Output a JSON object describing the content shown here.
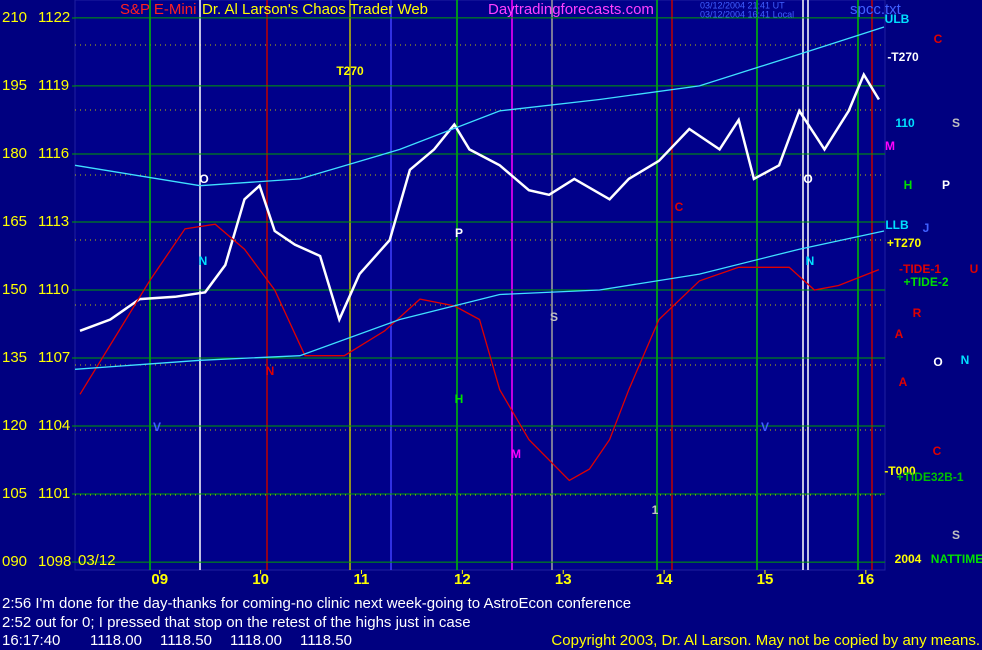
{
  "chart_data": {
    "type": "line",
    "header": {
      "symbol": "S&P E-Mini",
      "title": "Dr. Al Larson's Chaos Trader Web",
      "site": "Daytradingforecasts.com",
      "time_ut": "03/12/2004 21:41 UT",
      "time_local": "03/12/2004 16:41 Local",
      "file": "spcc.txt"
    },
    "date": "03/12",
    "xlim": [
      8.16,
      16.19
    ],
    "xticks": [
      {
        "value": 9,
        "label": "09"
      },
      10,
      11,
      12,
      13,
      14,
      15,
      16
    ],
    "ylim": [
      1097.65,
      1122.79
    ],
    "yticks": [
      1098,
      1101,
      1104,
      1107,
      1110,
      1113,
      1116,
      1119,
      1122
    ],
    "y2lim": [
      88.24,
      213.97
    ],
    "y2ticks": [
      {
        "value": 90,
        "label": "090"
      },
      105,
      120,
      135,
      150,
      165,
      180,
      195,
      210
    ],
    "grid": true,
    "series": [
      {
        "color": "#ffffff",
        "x": [
          8.21,
          8.51,
          8.8,
          9.15,
          9.45,
          9.65,
          9.84,
          9.99,
          10.14,
          10.34,
          10.59,
          10.78,
          10.98,
          11.28,
          11.48,
          11.72,
          11.92,
          12.07,
          12.37,
          12.66,
          12.86,
          13.11,
          13.46,
          13.65,
          13.95,
          14.25,
          14.55,
          14.74,
          14.89,
          15.14,
          15.34,
          15.59,
          15.83,
          15.98,
          16.13
        ],
        "values": [
          1108.2,
          1108.7,
          1109.6,
          1109.7,
          1109.9,
          1111.1,
          1114.0,
          1114.6,
          1112.6,
          1112.0,
          1111.5,
          1108.7,
          1110.7,
          1112.2,
          1115.3,
          1116.2,
          1117.3,
          1116.2,
          1115.5,
          1114.4,
          1114.2,
          1114.9,
          1114.0,
          1114.9,
          1115.7,
          1117.1,
          1116.2,
          1117.5,
          1114.9,
          1115.5,
          1117.9,
          1116.2,
          1117.9,
          1119.5,
          1118.4
        ]
      },
      {
        "color": "#e00000",
        "x": [
          8.21,
          8.9,
          9.25,
          9.55,
          9.84,
          10.14,
          10.44,
          10.83,
          11.23,
          11.58,
          11.92,
          12.17,
          12.37,
          12.66,
          13.06,
          13.26,
          13.46,
          13.65,
          13.95,
          14.35,
          14.74,
          15.24,
          15.49,
          15.73,
          16.13
        ],
        "values": [
          1105.4,
          1110.4,
          1112.7,
          1112.9,
          1111.8,
          1110.0,
          1107.1,
          1107.1,
          1108.2,
          1109.6,
          1109.3,
          1108.7,
          1105.6,
          1103.4,
          1101.6,
          1102.1,
          1103.4,
          1105.6,
          1108.7,
          1110.4,
          1111.0,
          1111.0,
          1110.0,
          1110.2,
          1110.9
        ]
      },
      {
        "color": "#40e0ff",
        "x": [
          8.16,
          9.4,
          10.39,
          11.38,
          12.37,
          13.36,
          14.35,
          15.34,
          16.18
        ],
        "values": [
          1115.5,
          1114.6,
          1114.9,
          1116.2,
          1117.9,
          1118.4,
          1119.0,
          1120.4,
          1121.6
        ]
      },
      {
        "color": "#40e0ff",
        "x": [
          8.16,
          9.4,
          10.39,
          11.38,
          12.37,
          13.36,
          14.35,
          15.34,
          16.18
        ],
        "values": [
          1106.5,
          1106.9,
          1107.1,
          1108.7,
          1109.8,
          1110.0,
          1110.7,
          1111.8,
          1112.6
        ]
      }
    ],
    "annotations": [
      {
        "text": "T270",
        "color": "#ffff00"
      },
      {
        "text": "O",
        "color": "#ffffff"
      },
      {
        "text": "N",
        "color": "#00e0ff"
      },
      {
        "text": "N",
        "color": "#e00000"
      },
      {
        "text": "P",
        "color": "#ffffff"
      },
      {
        "text": "S",
        "color": "#c0c0c0"
      },
      {
        "text": "H",
        "color": "#00e000"
      },
      {
        "text": "M",
        "color": "#ff00ff"
      },
      {
        "text": "C",
        "color": "#e00000"
      },
      {
        "text": "O",
        "color": "#ffffff"
      },
      {
        "text": "N",
        "color": "#00e0ff"
      },
      {
        "text": "V",
        "color": "#4060ff"
      },
      {
        "text": "V",
        "color": "#4060ff"
      },
      {
        "text": "1",
        "color": "#c0c0c0"
      },
      {
        "text": "ULB",
        "color": "#00e0ff"
      },
      {
        "text": "C",
        "color": "#e00000"
      },
      {
        "text": "-T270",
        "color": "#ffffff"
      },
      {
        "text": "110",
        "color": "#00e0ff"
      },
      {
        "text": "S",
        "color": "#c0c0c0"
      },
      {
        "text": "M",
        "color": "#ff00ff"
      },
      {
        "text": "H",
        "color": "#00e000"
      },
      {
        "text": "P",
        "color": "#ffffff"
      },
      {
        "text": "LLB",
        "color": "#00e0ff"
      },
      {
        "text": "J",
        "color": "#4060ff"
      },
      {
        "text": "+T270",
        "color": "#ffff00"
      },
      {
        "text": "-TIDE-1",
        "color": "#e00000"
      },
      {
        "text": "U",
        "color": "#e00000"
      },
      {
        "text": "+TIDE-2",
        "color": "#00e000"
      },
      {
        "text": "R",
        "color": "#e00000"
      },
      {
        "text": "A",
        "color": "#e00000"
      },
      {
        "text": "O",
        "color": "#ffffff"
      },
      {
        "text": "N",
        "color": "#00e0ff"
      },
      {
        "text": "A",
        "color": "#e00000"
      },
      {
        "text": "C",
        "color": "#e00000"
      },
      {
        "text": "-T000",
        "color": "#ffff00"
      },
      {
        "text": "+TIDE32B-1",
        "color": "#00c000"
      },
      {
        "text": "S",
        "color": "#c0c0c0"
      },
      {
        "text": "2004",
        "color": "#ffff00"
      },
      {
        "text": "NATTIME",
        "color": "#00e000"
      }
    ],
    "messages": [
      "2:56 I'm done for the day-thanks for coming-no clinic next week-going to AstroEcon conference",
      "2:52 out for 0; I pressed that stop on the retest of the highs just in case"
    ],
    "status": {
      "time": "16:17:40",
      "quote": [
        "1118.00",
        "1118.50",
        "1118.00",
        "1118.50"
      ],
      "copyright": "Copyright 2003, Dr. Al Larson. May not be copied by any means."
    }
  }
}
